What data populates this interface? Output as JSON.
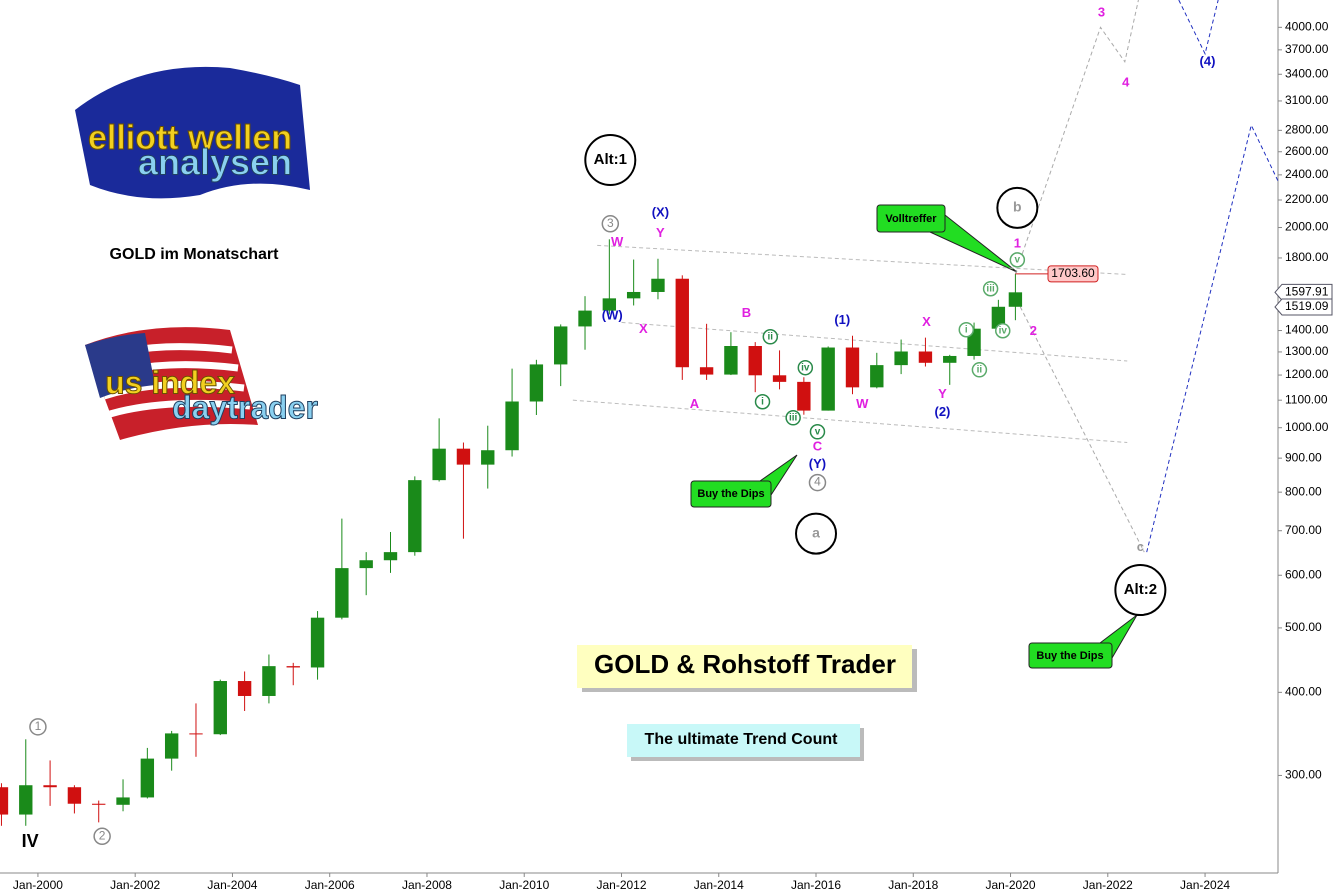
{
  "chart_data": {
    "type": "candlestick",
    "title": "GOLD im Monatschart",
    "headline": "GOLD & Rohstoff Trader",
    "tagline": "The ultimate Trend Count",
    "logos": [
      {
        "line1": "elliott wellen",
        "line2": "analysen"
      },
      {
        "line1": "us index",
        "line2": "daytrader"
      }
    ],
    "callouts": [
      "Volltreffer",
      "Buy the Dips",
      "Buy the Dips"
    ],
    "log_scale": true,
    "up_color": "#1a8a1a",
    "down_color": "#d01010",
    "xlim": [
      1999.22,
      2025.5
    ],
    "xticks": [
      {
        "value": 2000,
        "label": "Jan-2000"
      },
      {
        "value": 2002,
        "label": "Jan-2002"
      },
      {
        "value": 2004,
        "label": "Jan-2004"
      },
      {
        "value": 2006,
        "label": "Jan-2006"
      },
      {
        "value": 2008,
        "label": "Jan-2008"
      },
      {
        "value": 2010,
        "label": "Jan-2010"
      },
      {
        "value": 2012,
        "label": "Jan-2012"
      },
      {
        "value": 2014,
        "label": "Jan-2014"
      },
      {
        "value": 2016,
        "label": "Jan-2016"
      },
      {
        "value": 2018,
        "label": "Jan-2018"
      },
      {
        "value": 2020,
        "label": "Jan-2020"
      },
      {
        "value": 2022,
        "label": "Jan-2022"
      },
      {
        "value": 2024,
        "label": "Jan-2024"
      }
    ],
    "ylim": [
      214,
      4397
    ],
    "yticks": [
      {
        "value": 300,
        "label": "300.00"
      },
      {
        "value": 400,
        "label": "400.00"
      },
      {
        "value": 500,
        "label": "500.00"
      },
      {
        "value": 600,
        "label": "600.00"
      },
      {
        "value": 700,
        "label": "700.00"
      },
      {
        "value": 800,
        "label": "800.00"
      },
      {
        "value": 900,
        "label": "900.00"
      },
      {
        "value": 1000,
        "label": "1000.00"
      },
      {
        "value": 1100,
        "label": "1100.00"
      },
      {
        "value": 1200,
        "label": "1200.00"
      },
      {
        "value": 1300,
        "label": "1300.00"
      },
      {
        "value": 1400,
        "label": "1400.00"
      },
      {
        "value": 1600,
        "label": "1600.00"
      },
      {
        "value": 1800,
        "label": "1800.00"
      },
      {
        "value": 2000,
        "label": "2000.00"
      },
      {
        "value": 2200,
        "label": "2200.00"
      },
      {
        "value": 2400,
        "label": "2400.00"
      },
      {
        "value": 2600,
        "label": "2600.00"
      },
      {
        "value": 2800,
        "label": "2800.00"
      },
      {
        "value": 3100,
        "label": "3100.00"
      },
      {
        "value": 3400,
        "label": "3400.00"
      },
      {
        "value": 3700,
        "label": "3700.00"
      },
      {
        "value": 4000,
        "label": "4000.00"
      }
    ],
    "x": [
      1999.25,
      1999.75,
      2000.25,
      2000.75,
      2001.25,
      2001.75,
      2002.25,
      2002.75,
      2003.25,
      2003.75,
      2004.25,
      2004.75,
      2005.25,
      2005.75,
      2006.25,
      2006.75,
      2007.25,
      2007.75,
      2008.25,
      2008.75,
      2009.25,
      2009.75,
      2010.25,
      2010.75,
      2011.25,
      2011.75,
      2012.25,
      2012.75,
      2013.25,
      2013.75,
      2014.25,
      2014.75,
      2015.25,
      2015.75,
      2016.25,
      2016.75,
      2017.25,
      2017.75,
      2018.25,
      2018.75,
      2019.25,
      2019.75,
      2020.1
    ],
    "open": [
      288,
      262,
      290,
      288,
      272,
      271,
      278,
      318,
      347,
      346,
      416,
      395,
      438,
      436,
      518,
      615,
      632,
      650,
      834,
      930,
      880,
      925,
      1095,
      1245,
      1420,
      1500,
      1565,
      1600,
      1675,
      1233,
      1202,
      1327,
      1199,
      1172,
      1061,
      1320,
      1150,
      1242,
      1302,
      1252,
      1282,
      1409,
      1520
    ],
    "high": [
      292,
      340,
      316,
      290,
      275,
      296,
      330,
      350,
      385,
      418,
      430,
      456,
      443,
      530,
      730,
      650,
      697,
      845,
      1033,
      950,
      1007,
      1227,
      1265,
      1430,
      1577,
      1920,
      1790,
      1795,
      1695,
      1433,
      1392,
      1345,
      1307,
      1191,
      1325,
      1375,
      1296,
      1357,
      1366,
      1287,
      1439,
      1557,
      1703
    ],
    "low": [
      252,
      252,
      270,
      263,
      255,
      265,
      277,
      305,
      320,
      345,
      375,
      385,
      410,
      418,
      515,
      560,
      605,
      642,
      830,
      681,
      810,
      905,
      1045,
      1155,
      1310,
      1480,
      1527,
      1560,
      1180,
      1180,
      1200,
      1131,
      1142,
      1046,
      1061,
      1123,
      1146,
      1204,
      1236,
      1160,
      1266,
      1400,
      1451
    ],
    "close": [
      262,
      290,
      288,
      272,
      271,
      278,
      318,
      347,
      346,
      416,
      395,
      438,
      436,
      518,
      615,
      632,
      650,
      834,
      930,
      880,
      925,
      1095,
      1245,
      1420,
      1500,
      1565,
      1600,
      1675,
      1233,
      1202,
      1327,
      1199,
      1172,
      1061,
      1320,
      1150,
      1242,
      1302,
      1252,
      1282,
      1409,
      1520,
      1598
    ],
    "price_labels": [
      {
        "value": 1703.6,
        "label": "1703.60"
      },
      {
        "value": 1597.91,
        "label": "1597.91"
      },
      {
        "value": 1519.09,
        "label": "1519.09"
      }
    ],
    "lines": [
      {
        "x": [
          2011.5,
          2022.4
        ],
        "y": [
          1880,
          1700
        ],
        "color": "#bbbbbb"
      },
      {
        "x": [
          2012,
          2022.4
        ],
        "y": [
          1440,
          1260
        ],
        "color": "#bbbbbb"
      },
      {
        "x": [
          2011,
          2022.4
        ],
        "y": [
          1100,
          950
        ],
        "color": "#bbbbbb"
      },
      {
        "x": [
          2020.1,
          2021.85,
          2022.35,
          2022.63
        ],
        "y": [
          1704,
          4000,
          3550,
          4397
        ],
        "color": "#aaaaaa"
      },
      {
        "x": [
          2020.2,
          2022.75
        ],
        "y": [
          1520,
          650
        ],
        "color": "#aaaaaa"
      },
      {
        "x": [
          2022.8,
          2024.95,
          2025.5
        ],
        "y": [
          650,
          2850,
          2350
        ],
        "color": "#2030c0"
      },
      {
        "x": [
          2023.46,
          2024.0,
          2024.27
        ],
        "y": [
          4397,
          3650,
          4397
        ],
        "color": "#2030c0"
      }
    ],
    "annotations": [
      {
        "text": "IV",
        "x": 1999.84,
        "y": 238,
        "color": "#000000",
        "style": "bold"
      },
      {
        "text": "1",
        "x": 2000,
        "y": 355,
        "color": "#888888",
        "style": "circle"
      },
      {
        "text": "2",
        "x": 2001.32,
        "y": 243,
        "color": "#888888",
        "style": "circle"
      },
      {
        "text": "3",
        "x": 2011.77,
        "y": 2026,
        "color": "#888888",
        "style": "circle"
      },
      {
        "text": "4",
        "x": 2016.03,
        "y": 827,
        "color": "#888888",
        "style": "circle"
      },
      {
        "text": "Alt:1",
        "x": 2011.77,
        "y": 2527,
        "color": "#000000",
        "style": "big"
      },
      {
        "text": "b",
        "x": 2020.14,
        "y": 2141,
        "color": "#999999",
        "style": "ring"
      },
      {
        "text": "a",
        "x": 2016.0,
        "y": 693,
        "color": "#999999",
        "style": "ring"
      },
      {
        "text": "Alt:2",
        "x": 2022.67,
        "y": 570,
        "color": "#000000",
        "style": "big"
      },
      {
        "text": "c",
        "x": 2022.67,
        "y": 660,
        "color": "#999999",
        "style": "plain"
      },
      {
        "text": "(X)",
        "x": 2012.8,
        "y": 2104,
        "color": "#1010c0",
        "style": "plain"
      },
      {
        "text": "Y",
        "x": 2012.8,
        "y": 1960,
        "color": "#e020e0",
        "style": "plain"
      },
      {
        "text": "W",
        "x": 2011.91,
        "y": 1897,
        "color": "#e020e0",
        "style": "plain"
      },
      {
        "text": "(W)",
        "x": 2011.81,
        "y": 1473,
        "color": "#1010c0",
        "style": "plain"
      },
      {
        "text": "X",
        "x": 2012.45,
        "y": 1404,
        "color": "#e020e0",
        "style": "plain"
      },
      {
        "text": "A",
        "x": 2013.5,
        "y": 1083,
        "color": "#e020e0",
        "style": "plain"
      },
      {
        "text": "B",
        "x": 2014.57,
        "y": 1484,
        "color": "#e020e0",
        "style": "plain"
      },
      {
        "text": "C",
        "x": 2016.03,
        "y": 936,
        "color": "#e020e0",
        "style": "plain"
      },
      {
        "text": "(Y)",
        "x": 2016.03,
        "y": 880,
        "color": "#1010c0",
        "style": "plain"
      },
      {
        "text": "(1)",
        "x": 2016.54,
        "y": 1448,
        "color": "#1010c0",
        "style": "plain"
      },
      {
        "text": "W",
        "x": 2016.95,
        "y": 1083,
        "color": "#e020e0",
        "style": "plain"
      },
      {
        "text": "X",
        "x": 2018.27,
        "y": 1438,
        "color": "#e020e0",
        "style": "plain"
      },
      {
        "text": "Y",
        "x": 2018.6,
        "y": 1121,
        "color": "#e020e0",
        "style": "plain"
      },
      {
        "text": "(2)",
        "x": 2018.6,
        "y": 1053,
        "color": "#1010c0",
        "style": "plain"
      },
      {
        "text": "1",
        "x": 2020.14,
        "y": 1890,
        "color": "#e020e0",
        "style": "plain"
      },
      {
        "text": "2",
        "x": 2020.47,
        "y": 1394,
        "color": "#e020e0",
        "style": "plain"
      },
      {
        "text": "3",
        "x": 2021.87,
        "y": 4204,
        "color": "#e020e0",
        "style": "plain"
      },
      {
        "text": "4",
        "x": 2022.37,
        "y": 3300,
        "color": "#e020e0",
        "style": "plain"
      },
      {
        "text": "(4)",
        "x": 2024.05,
        "y": 3547,
        "color": "#1010c0",
        "style": "plain"
      },
      {
        "text": "i",
        "x": 2014.9,
        "y": 1094,
        "color": "#2a8a4a",
        "style": "green"
      },
      {
        "text": "ii",
        "x": 2015.06,
        "y": 1370,
        "color": "#2a8a4a",
        "style": "green"
      },
      {
        "text": "iii",
        "x": 2015.53,
        "y": 1035,
        "color": "#2a8a4a",
        "style": "green"
      },
      {
        "text": "iv",
        "x": 2015.78,
        "y": 1231,
        "color": "#2a8a4a",
        "style": "green"
      },
      {
        "text": "v",
        "x": 2016.03,
        "y": 986,
        "color": "#2a8a4a",
        "style": "green"
      },
      {
        "text": "i",
        "x": 2019.09,
        "y": 1404,
        "color": "#5aaa6a",
        "style": "green"
      },
      {
        "text": "ii",
        "x": 2019.36,
        "y": 1222,
        "color": "#5aaa6a",
        "style": "green"
      },
      {
        "text": "iii",
        "x": 2019.59,
        "y": 1618,
        "color": "#5aaa6a",
        "style": "green"
      },
      {
        "text": "iv",
        "x": 2019.84,
        "y": 1399,
        "color": "#5aaa6a",
        "style": "green"
      },
      {
        "text": "v",
        "x": 2020.14,
        "y": 1788,
        "color": "#5aaa6a",
        "style": "green"
      }
    ]
  }
}
